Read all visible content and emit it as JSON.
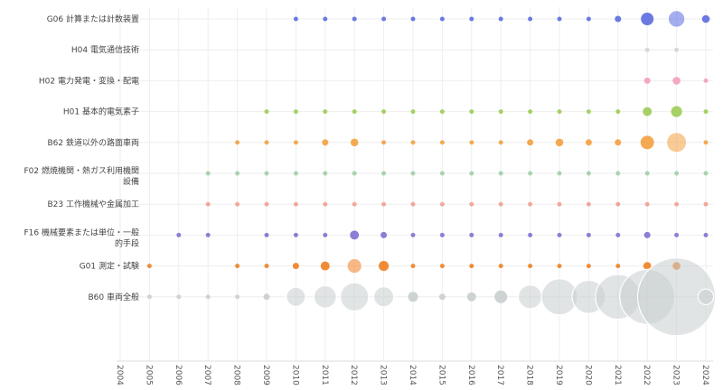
{
  "chart_data": {
    "type": "scatter",
    "x": [
      "2004",
      "2005",
      "2006",
      "2007",
      "2008",
      "2009",
      "2010",
      "2011",
      "2012",
      "2013",
      "2014",
      "2015",
      "2016",
      "2017",
      "2018",
      "2019",
      "2020",
      "2021",
      "2022",
      "2023",
      "2024"
    ],
    "categories": [
      "G06 計算または計数装置",
      "H04 電気通信技術",
      "H02 電力発電・変換・配電",
      "H01 基本的電気素子",
      "B62 鉄道以外の路面車両",
      "F02 燃焼機関・熱ガス利用機関設備",
      "B23 工作機械や金属加工",
      "F16 機械要素または単位・一般的手段",
      "G01 測定・試験",
      "B60 車両全般"
    ],
    "series": [
      {
        "color": "#5b6be0",
        "values": [
          0,
          0,
          0,
          0,
          0,
          0,
          1,
          1,
          1,
          1,
          1,
          1,
          1,
          1,
          1,
          1,
          1,
          2,
          8,
          14,
          3
        ]
      },
      {
        "color": "#d4d4d4",
        "values": [
          0,
          0,
          0,
          0,
          0,
          0,
          0,
          0,
          0,
          0,
          0,
          0,
          0,
          0,
          0,
          0,
          0,
          0,
          1,
          1,
          0
        ]
      },
      {
        "color": "#f4a0b8",
        "values": [
          0,
          0,
          0,
          0,
          0,
          0,
          0,
          0,
          0,
          0,
          0,
          0,
          0,
          0,
          0,
          0,
          0,
          0,
          2,
          3,
          1
        ]
      },
      {
        "color": "#9ccc55",
        "values": [
          0,
          0,
          0,
          0,
          0,
          1,
          1,
          1,
          1,
          1,
          1,
          1,
          1,
          1,
          1,
          1,
          1,
          1,
          4,
          6,
          1
        ]
      },
      {
        "color": "#f4a040",
        "values": [
          0,
          0,
          0,
          0,
          1,
          1,
          1,
          2,
          3,
          1,
          1,
          1,
          1,
          1,
          2,
          3,
          2,
          2,
          9,
          20,
          1
        ]
      },
      {
        "color": "#9fcfa5",
        "values": [
          0,
          0,
          0,
          1,
          1,
          1,
          1,
          1,
          1,
          1,
          1,
          1,
          1,
          1,
          1,
          1,
          1,
          1,
          1,
          1,
          1
        ]
      },
      {
        "color": "#f0a090",
        "values": [
          0,
          0,
          0,
          1,
          1,
          1,
          1,
          1,
          1,
          1,
          1,
          1,
          1,
          1,
          1,
          1,
          1,
          1,
          1,
          1,
          1
        ]
      },
      {
        "color": "#8070d0",
        "values": [
          0,
          0,
          1,
          1,
          0,
          1,
          1,
          1,
          4,
          2,
          1,
          1,
          1,
          1,
          1,
          1,
          1,
          1,
          2,
          1,
          1
        ]
      },
      {
        "color": "#f08020",
        "values": [
          0,
          1,
          0,
          0,
          1,
          1,
          2,
          4,
          11,
          5,
          1,
          1,
          1,
          1,
          1,
          1,
          1,
          1,
          3,
          3,
          0
        ]
      },
      {
        "color": "#c9cecf",
        "values": [
          0,
          1,
          1,
          1,
          1,
          2,
          18,
          25,
          40,
          20,
          5,
          2,
          4,
          8,
          28,
          65,
          55,
          100,
          150,
          300,
          12
        ]
      }
    ],
    "grid": true,
    "legend": "none"
  }
}
